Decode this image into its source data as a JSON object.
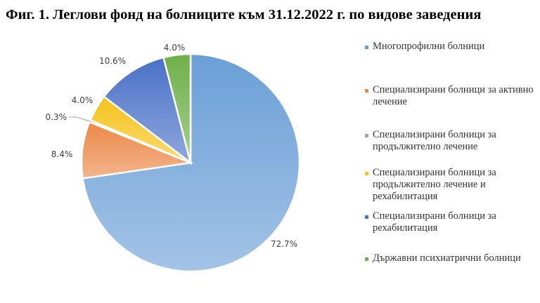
{
  "title": "Фиг. 1. Леглови фонд на болниците към 31.12.2022 г. по видове заведения",
  "chart_data": {
    "type": "pie",
    "series": [
      {
        "name": "Многопрофилни болници",
        "value": 72.7,
        "label": "72.7%",
        "color": "#6a9fd6"
      },
      {
        "name": "Специализирани болници за активно лечение",
        "value": 8.4,
        "label": "8.4%",
        "color": "#eb8847"
      },
      {
        "name": "Специализирани болници за продължително лечение",
        "value": 0.3,
        "label": "0.3%",
        "color": "#a5a5a5"
      },
      {
        "name": "Специализирани болници за продължително лечение и рехабилитация",
        "value": 4.0,
        "label": "4.0%",
        "color": "#f5c31c"
      },
      {
        "name": "Специализирани болници за рехабилитация",
        "value": 10.6,
        "label": "10.6%",
        "color": "#4a71c7"
      },
      {
        "name": "Държавни психиатрични болници",
        "value": 4.0,
        "label": "4.0%",
        "color": "#6fb04a"
      }
    ],
    "legend_position": "right"
  }
}
